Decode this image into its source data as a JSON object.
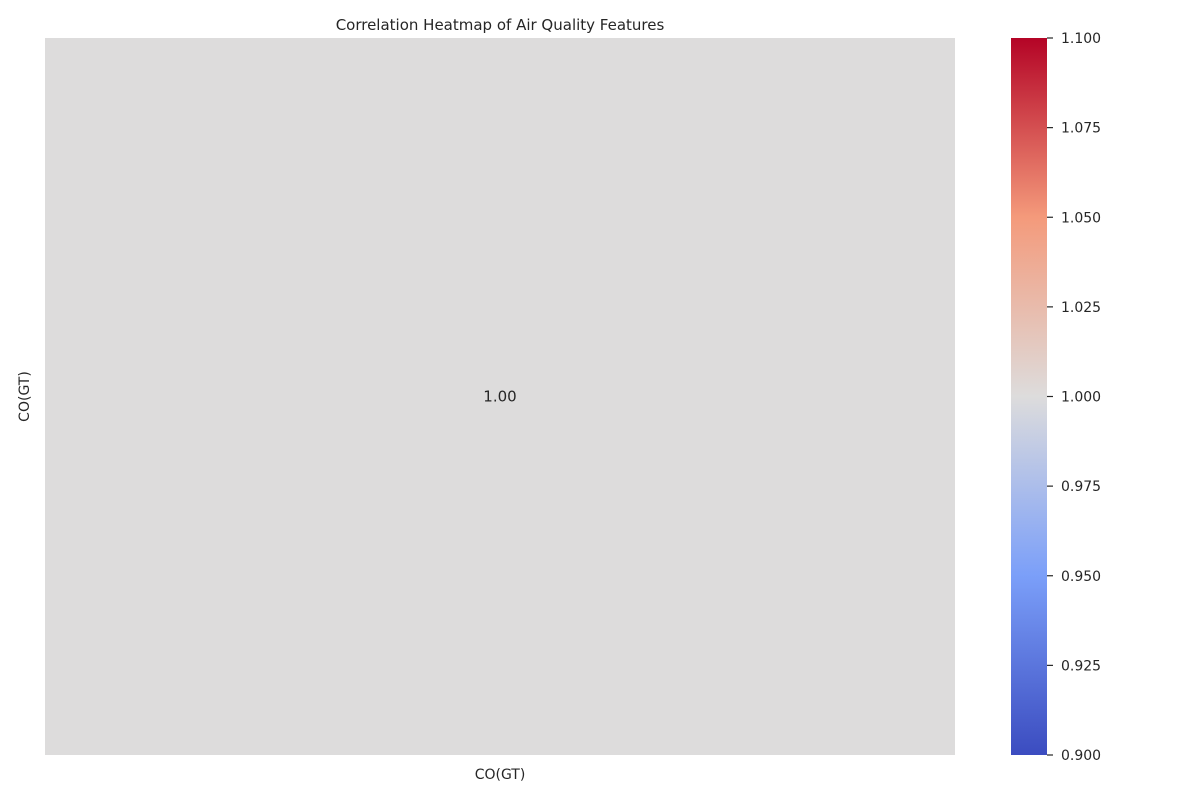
{
  "chart_data": {
    "type": "heatmap",
    "title": "Correlation Heatmap of Air Quality Features",
    "x_categories": [
      "CO(GT)"
    ],
    "y_categories": [
      "CO(GT)"
    ],
    "values": [
      [
        1.0
      ]
    ],
    "annotations": [
      [
        "1.00"
      ]
    ],
    "colormap": "coolwarm",
    "colorbar": {
      "range": [
        0.9,
        1.1
      ],
      "ticks": [
        0.9,
        0.925,
        0.95,
        0.975,
        1.0,
        1.025,
        1.05,
        1.075,
        1.1
      ],
      "tick_labels": [
        "0.900",
        "0.925",
        "0.950",
        "0.975",
        "1.000",
        "1.025",
        "1.050",
        "1.075",
        "1.100"
      ],
      "colors": [
        "#3b4cc0",
        "#dddcdc",
        "#b40426"
      ]
    },
    "grid": false
  }
}
